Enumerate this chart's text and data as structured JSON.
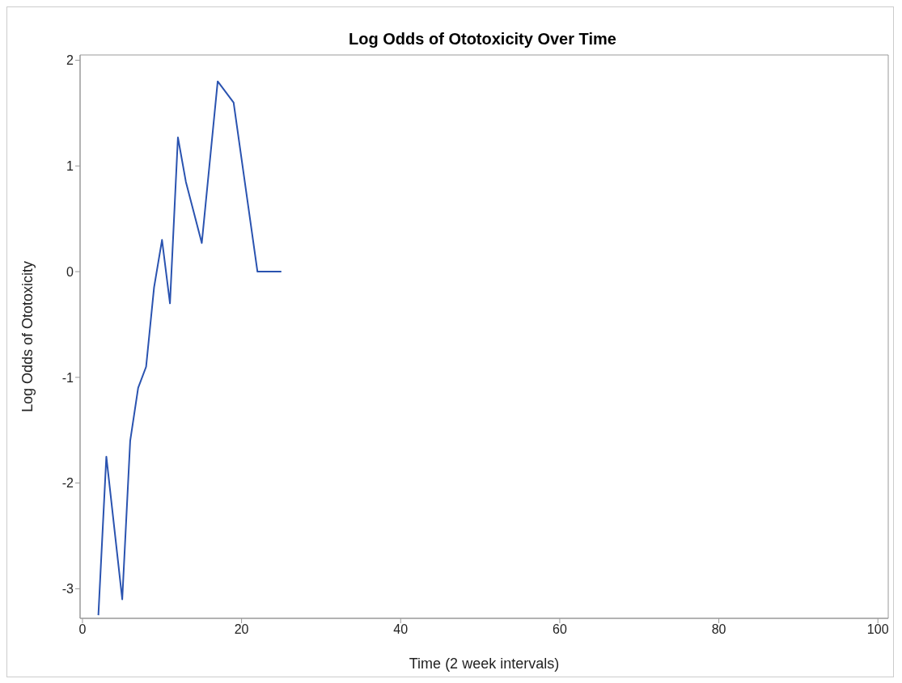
{
  "chart_data": {
    "type": "line",
    "title": "Log Odds of Ototoxicity Over Time",
    "xlabel": "Time (2 week intervals)",
    "ylabel": "Log Odds of Ototoxicity",
    "x": [
      2,
      3,
      5,
      6,
      7,
      8,
      9,
      10,
      11,
      12,
      13,
      15,
      17,
      19,
      22,
      25
    ],
    "series": [
      {
        "color": "#2a53b0",
        "values": [
          -3.25,
          -1.75,
          -3.1,
          -1.6,
          -1.1,
          -0.9,
          -0.15,
          0.3,
          -0.3,
          1.27,
          0.85,
          0.27,
          1.8,
          1.6,
          0,
          0
        ]
      }
    ],
    "xlim": [
      -0.3,
      101.3
    ],
    "xticks": [
      0,
      20,
      40,
      60,
      80,
      100
    ],
    "ylim": [
      -3.28,
      2.05
    ],
    "yticks": [
      -3,
      -2,
      -1,
      0,
      1,
      2
    ],
    "grid": false,
    "legend": false,
    "marker": "none",
    "line_style": "solid"
  }
}
